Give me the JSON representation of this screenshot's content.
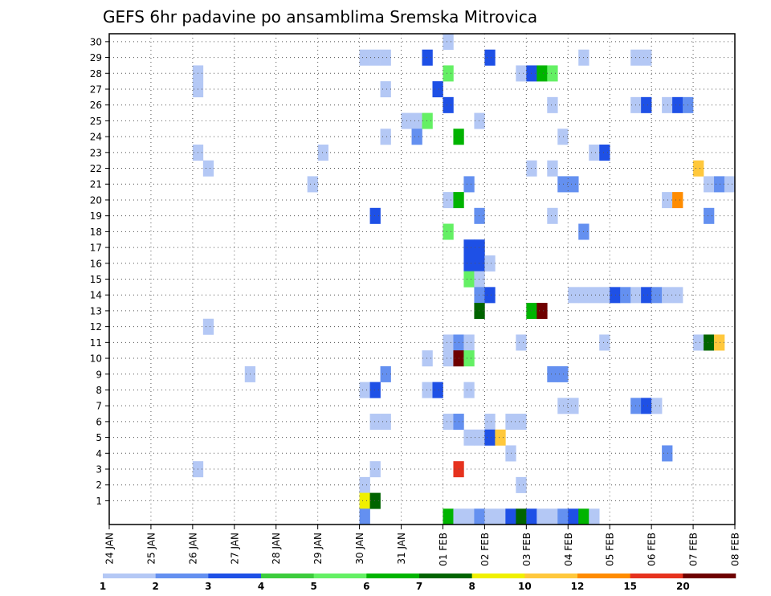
{
  "chart_data": {
    "type": "heatmap",
    "title": "GEFS 6hr padavine po ansamblima Sremska Mitrovica",
    "xlabel": "",
    "ylabel": "",
    "x_tick_labels": [
      "24 JAN",
      "25 JAN",
      "26 JAN",
      "27 JAN",
      "28 JAN",
      "29 JAN",
      "30 JAN",
      "31 JAN",
      "01 FEB",
      "02 FEB",
      "03 FEB",
      "04 FEB",
      "05 FEB",
      "06 FEB",
      "07 FEB",
      "08 FEB"
    ],
    "xlim_steps": [
      0,
      60
    ],
    "y_tick_labels": [
      "1",
      "2",
      "3",
      "4",
      "5",
      "6",
      "7",
      "8",
      "9",
      "10",
      "11",
      "12",
      "13",
      "14",
      "15",
      "16",
      "17",
      "18",
      "19",
      "20",
      "21",
      "22",
      "23",
      "24",
      "25",
      "26",
      "27",
      "28",
      "29",
      "30"
    ],
    "ylim_members": [
      0,
      30
    ],
    "grid": true,
    "legend_placement": "bottom",
    "legend": {
      "labels": [
        "1",
        "2",
        "3",
        "4",
        "5",
        "6",
        "7",
        "8",
        "10",
        "12",
        "15",
        "20"
      ],
      "colors": [
        "#b4c8f5",
        "#6490f0",
        "#1e50e6",
        "#3ccc3c",
        "#64f064",
        "#00b400",
        "#006400",
        "#f0f000",
        "#ffc83c",
        "#ff8c00",
        "#e6321e",
        "#6e0000"
      ]
    },
    "cells": [
      [
        32,
        30,
        1
      ],
      [
        45,
        29,
        1
      ],
      [
        24,
        29,
        1
      ],
      [
        25,
        29,
        1
      ],
      [
        26,
        29,
        1
      ],
      [
        30,
        29,
        3
      ],
      [
        36,
        29,
        3
      ],
      [
        50,
        29,
        1
      ],
      [
        51,
        29,
        1
      ],
      [
        8,
        28,
        1
      ],
      [
        32,
        28,
        5
      ],
      [
        39,
        28,
        1
      ],
      [
        40,
        28,
        3
      ],
      [
        41,
        28,
        6
      ],
      [
        42,
        28,
        5
      ],
      [
        8,
        27,
        1
      ],
      [
        26,
        27,
        1
      ],
      [
        31,
        27,
        3
      ],
      [
        32,
        26,
        3
      ],
      [
        42,
        26,
        1
      ],
      [
        50,
        26,
        1
      ],
      [
        51,
        26,
        3
      ],
      [
        53,
        26,
        1
      ],
      [
        54,
        26,
        3
      ],
      [
        55,
        26,
        2
      ],
      [
        28,
        25,
        1
      ],
      [
        29,
        25,
        1
      ],
      [
        30,
        25,
        5
      ],
      [
        35,
        25,
        1
      ],
      [
        26,
        24,
        1
      ],
      [
        29,
        24,
        2
      ],
      [
        33,
        24,
        6
      ],
      [
        43,
        24,
        1
      ],
      [
        8,
        23,
        1
      ],
      [
        20,
        23,
        1
      ],
      [
        46,
        23,
        1
      ],
      [
        47,
        23,
        3
      ],
      [
        9,
        22,
        1
      ],
      [
        40,
        22,
        1
      ],
      [
        42,
        22,
        1
      ],
      [
        56,
        22,
        10
      ],
      [
        19,
        21,
        1
      ],
      [
        34,
        21,
        2
      ],
      [
        43,
        21,
        2
      ],
      [
        44,
        21,
        2
      ],
      [
        57,
        21,
        1
      ],
      [
        58,
        21,
        2
      ],
      [
        59,
        21,
        1
      ],
      [
        32,
        20,
        1
      ],
      [
        33,
        20,
        6
      ],
      [
        53,
        20,
        1
      ],
      [
        54,
        20,
        12
      ],
      [
        25,
        19,
        3
      ],
      [
        35,
        19,
        2
      ],
      [
        42,
        19,
        1
      ],
      [
        57,
        19,
        2
      ],
      [
        32,
        18,
        5
      ],
      [
        45,
        18,
        2
      ],
      [
        34,
        17,
        3
      ],
      [
        35,
        17,
        3
      ],
      [
        34,
        16,
        3
      ],
      [
        35,
        16,
        3
      ],
      [
        36,
        16,
        1
      ],
      [
        34,
        15,
        5
      ],
      [
        35,
        15,
        1
      ],
      [
        35,
        14,
        2
      ],
      [
        36,
        14,
        3
      ],
      [
        44,
        14,
        1
      ],
      [
        45,
        14,
        1
      ],
      [
        46,
        14,
        1
      ],
      [
        47,
        14,
        1
      ],
      [
        48,
        14,
        3
      ],
      [
        49,
        14,
        2
      ],
      [
        50,
        14,
        1
      ],
      [
        51,
        14,
        3
      ],
      [
        52,
        14,
        2
      ],
      [
        53,
        14,
        1
      ],
      [
        54,
        14,
        1
      ],
      [
        35,
        13,
        7
      ],
      [
        40,
        13,
        6
      ],
      [
        41,
        13,
        20
      ],
      [
        9,
        12,
        1
      ],
      [
        32,
        11,
        1
      ],
      [
        33,
        11,
        2
      ],
      [
        34,
        11,
        1
      ],
      [
        39,
        11,
        1
      ],
      [
        47,
        11,
        1
      ],
      [
        56,
        11,
        1
      ],
      [
        57,
        11,
        7
      ],
      [
        58,
        11,
        10
      ],
      [
        30,
        10,
        1
      ],
      [
        32,
        10,
        1
      ],
      [
        33,
        10,
        20
      ],
      [
        34,
        10,
        5
      ],
      [
        13,
        9,
        1
      ],
      [
        26,
        9,
        2
      ],
      [
        42,
        9,
        2
      ],
      [
        43,
        9,
        2
      ],
      [
        24,
        8,
        1
      ],
      [
        25,
        8,
        3
      ],
      [
        30,
        8,
        1
      ],
      [
        31,
        8,
        3
      ],
      [
        34,
        8,
        1
      ],
      [
        43,
        7,
        1
      ],
      [
        44,
        7,
        1
      ],
      [
        50,
        7,
        2
      ],
      [
        51,
        7,
        3
      ],
      [
        52,
        7,
        1
      ],
      [
        25,
        6,
        1
      ],
      [
        26,
        6,
        1
      ],
      [
        32,
        6,
        1
      ],
      [
        33,
        6,
        2
      ],
      [
        36,
        6,
        1
      ],
      [
        38,
        6,
        1
      ],
      [
        39,
        6,
        1
      ],
      [
        34,
        5,
        1
      ],
      [
        35,
        5,
        1
      ],
      [
        36,
        5,
        3
      ],
      [
        37,
        5,
        10
      ],
      [
        38,
        4,
        1
      ],
      [
        53,
        4,
        2
      ],
      [
        8,
        3,
        1
      ],
      [
        25,
        3,
        1
      ],
      [
        33,
        3,
        15
      ],
      [
        24,
        2,
        1
      ],
      [
        39,
        2,
        1
      ],
      [
        24,
        1,
        8
      ],
      [
        25,
        1,
        7
      ],
      [
        24,
        0,
        2
      ],
      [
        32,
        0,
        6
      ],
      [
        33,
        0,
        1
      ],
      [
        34,
        0,
        1
      ],
      [
        35,
        0,
        2
      ],
      [
        36,
        0,
        1
      ],
      [
        37,
        0,
        1
      ],
      [
        38,
        0,
        3
      ],
      [
        39,
        0,
        7
      ],
      [
        40,
        0,
        3
      ],
      [
        41,
        0,
        1
      ],
      [
        42,
        0,
        1
      ],
      [
        43,
        0,
        2
      ],
      [
        44,
        0,
        3
      ],
      [
        45,
        0,
        6
      ],
      [
        46,
        0,
        1
      ]
    ]
  }
}
